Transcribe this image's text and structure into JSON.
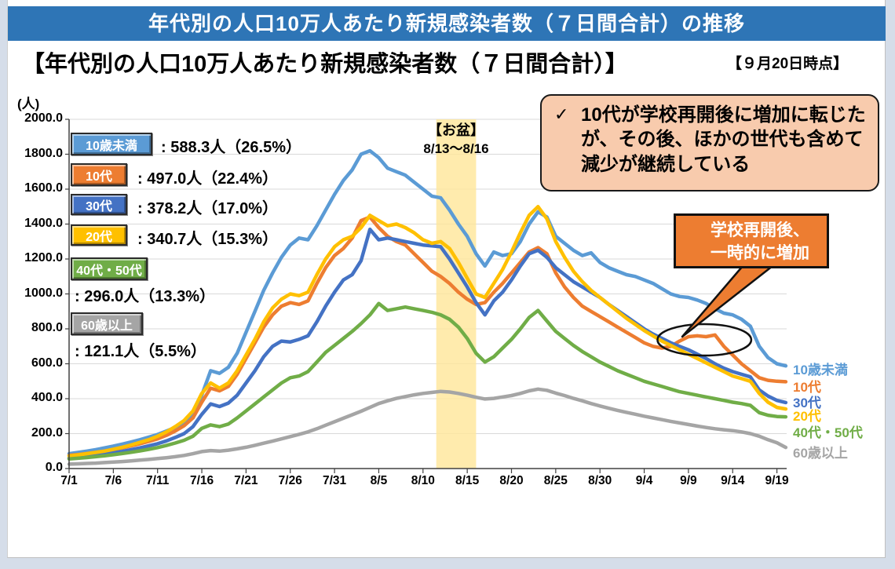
{
  "title_bar": {
    "text": "年代別の人口10万人あたり新規感染者数（７日間合計）の推移"
  },
  "heading": {
    "text": "【年代別の人口10万人あたり新規感染者数（７日間合計）】",
    "as_of": "【９月20日時点】"
  },
  "y_unit": "(人)",
  "legend": [
    {
      "label": "10歳未満",
      "value_text": ": 588.3人（26.5%）",
      "color": "#5B9BD5"
    },
    {
      "label": "10代",
      "value_text": ": 497.0人（22.4%）",
      "color": "#ED7D31"
    },
    {
      "label": "30代",
      "value_text": ": 378.2人（17.0%）",
      "color": "#4472C4"
    },
    {
      "label": "20代",
      "value_text": ": 340.7人（15.3%）",
      "color": "#FFC000"
    },
    {
      "label": "40代・50代",
      "value_text": ": 296.0人（13.3%）",
      "color": "#70AD47"
    },
    {
      "label": "60歳以上",
      "value_text": ": 121.1人（5.5%）",
      "color": "#A5A5A5"
    }
  ],
  "annotation": {
    "bullet": "✓",
    "text": "10代が学校再開後に増加に転じたが、その後、ほかの世代も含めて減少が継続している"
  },
  "callout": {
    "line1": "学校再開後、",
    "line2": "一時的に増加"
  },
  "obon": {
    "title": "【お盆】",
    "range": "8/13～8/16",
    "band_color": "#FFE699",
    "start_day": 41.5,
    "end_day": 46
  },
  "emphasis_ellipse": {
    "center_day": 71.8,
    "center_value": 737,
    "rx_days": 5.3,
    "ry_value": 90
  },
  "chart_data": {
    "type": "line",
    "title": "年代別の人口10万人あたり新規感染者数（7日間合計）の推移",
    "x_description": "daily values, day 0 = 7/1, day 81 = 9/20",
    "x_tick_labels": [
      "7/1",
      "7/6",
      "7/11",
      "7/16",
      "7/21",
      "7/26",
      "7/31",
      "8/5",
      "8/10",
      "8/15",
      "8/20",
      "8/25",
      "8/30",
      "9/4",
      "9/9",
      "9/14",
      "9/19"
    ],
    "x_tick_interval_days": 5,
    "ylim": [
      0,
      2000
    ],
    "y_tick_step": 200,
    "grid": true,
    "legend_position": "right",
    "series": [
      {
        "name": "10歳未満",
        "color": "#5B9BD5",
        "values": [
          85,
          92,
          100,
          108,
          118,
          128,
          140,
          152,
          165,
          180,
          195,
          215,
          235,
          260,
          300,
          420,
          560,
          545,
          580,
          660,
          780,
          900,
          1020,
          1120,
          1210,
          1280,
          1320,
          1310,
          1390,
          1480,
          1570,
          1650,
          1710,
          1800,
          1820,
          1780,
          1720,
          1700,
          1680,
          1640,
          1600,
          1560,
          1550,
          1480,
          1400,
          1330,
          1230,
          1160,
          1240,
          1220,
          1230,
          1300,
          1400,
          1470,
          1440,
          1330,
          1290,
          1250,
          1220,
          1235,
          1180,
          1150,
          1130,
          1110,
          1100,
          1080,
          1060,
          1030,
          1000,
          985,
          980,
          965,
          945,
          915,
          890,
          880,
          855,
          815,
          700,
          635,
          600,
          588
        ]
      },
      {
        "name": "10代",
        "color": "#ED7D31",
        "values": [
          75,
          80,
          86,
          92,
          100,
          108,
          118,
          130,
          142,
          155,
          170,
          190,
          215,
          245,
          290,
          380,
          460,
          445,
          470,
          540,
          630,
          720,
          810,
          880,
          930,
          950,
          940,
          960,
          1060,
          1150,
          1220,
          1260,
          1320,
          1420,
          1440,
          1380,
          1330,
          1300,
          1280,
          1230,
          1180,
          1130,
          1100,
          1060,
          1010,
          970,
          940,
          950,
          1010,
          1060,
          1120,
          1180,
          1240,
          1265,
          1230,
          1120,
          1040,
          980,
          930,
          900,
          870,
          840,
          810,
          780,
          750,
          720,
          700,
          690,
          700,
          730,
          755,
          760,
          755,
          765,
          700,
          650,
          600,
          560,
          520,
          505,
          500,
          497
        ]
      },
      {
        "name": "30代",
        "color": "#4472C4",
        "values": [
          60,
          65,
          70,
          76,
          82,
          90,
          98,
          108,
          118,
          130,
          142,
          158,
          178,
          200,
          240,
          310,
          370,
          355,
          375,
          420,
          490,
          560,
          640,
          700,
          730,
          725,
          740,
          760,
          840,
          930,
          1010,
          1080,
          1110,
          1190,
          1370,
          1310,
          1320,
          1310,
          1300,
          1290,
          1280,
          1275,
          1270,
          1200,
          1120,
          1040,
          950,
          880,
          960,
          1010,
          1080,
          1160,
          1230,
          1250,
          1210,
          1150,
          1110,
          1070,
          1040,
          1010,
          980,
          940,
          905,
          870,
          835,
          800,
          770,
          745,
          720,
          700,
          680,
          655,
          630,
          600,
          575,
          555,
          540,
          525,
          450,
          415,
          390,
          378
        ]
      },
      {
        "name": "20代",
        "color": "#FFC000",
        "values": [
          72,
          78,
          85,
          92,
          100,
          110,
          122,
          135,
          150,
          165,
          185,
          210,
          240,
          275,
          330,
          430,
          490,
          460,
          490,
          560,
          650,
          740,
          840,
          920,
          970,
          1000,
          990,
          1010,
          1110,
          1200,
          1270,
          1310,
          1330,
          1380,
          1450,
          1420,
          1390,
          1400,
          1380,
          1350,
          1310,
          1290,
          1300,
          1260,
          1180,
          1090,
          1000,
          980,
          1060,
          1140,
          1240,
          1350,
          1450,
          1500,
          1430,
          1300,
          1210,
          1130,
          1070,
          1020,
          980,
          940,
          900,
          860,
          825,
          790,
          760,
          730,
          705,
          680,
          655,
          630,
          605,
          580,
          555,
          530,
          515,
          500,
          430,
          380,
          350,
          341
        ]
      },
      {
        "name": "40代・50代",
        "color": "#70AD47",
        "values": [
          55,
          59,
          63,
          68,
          73,
          79,
          86,
          93,
          101,
          110,
          120,
          132,
          146,
          162,
          185,
          230,
          250,
          240,
          255,
          290,
          330,
          370,
          410,
          450,
          490,
          520,
          530,
          555,
          610,
          665,
          705,
          745,
          785,
          830,
          880,
          945,
          905,
          915,
          925,
          915,
          905,
          895,
          880,
          855,
          810,
          745,
          660,
          610,
          640,
          690,
          740,
          800,
          865,
          905,
          845,
          785,
          745,
          705,
          670,
          640,
          610,
          585,
          560,
          540,
          520,
          500,
          485,
          470,
          455,
          440,
          430,
          420,
          410,
          400,
          390,
          380,
          372,
          362,
          320,
          305,
          298,
          296
        ]
      },
      {
        "name": "60歳以上",
        "color": "#A5A5A5",
        "values": [
          25,
          27,
          29,
          31,
          34,
          37,
          40,
          44,
          48,
          52,
          57,
          62,
          68,
          75,
          85,
          97,
          103,
          100,
          105,
          113,
          122,
          133,
          145,
          157,
          170,
          183,
          196,
          210,
          228,
          248,
          268,
          288,
          308,
          328,
          350,
          372,
          388,
          402,
          412,
          422,
          430,
          436,
          442,
          438,
          430,
          420,
          408,
          398,
          402,
          410,
          418,
          430,
          445,
          455,
          448,
          432,
          418,
          402,
          388,
          372,
          358,
          345,
          333,
          322,
          311,
          300,
          290,
          280,
          270,
          261,
          252,
          243,
          235,
          228,
          222,
          217,
          210,
          200,
          185,
          165,
          148,
          121
        ]
      }
    ]
  }
}
